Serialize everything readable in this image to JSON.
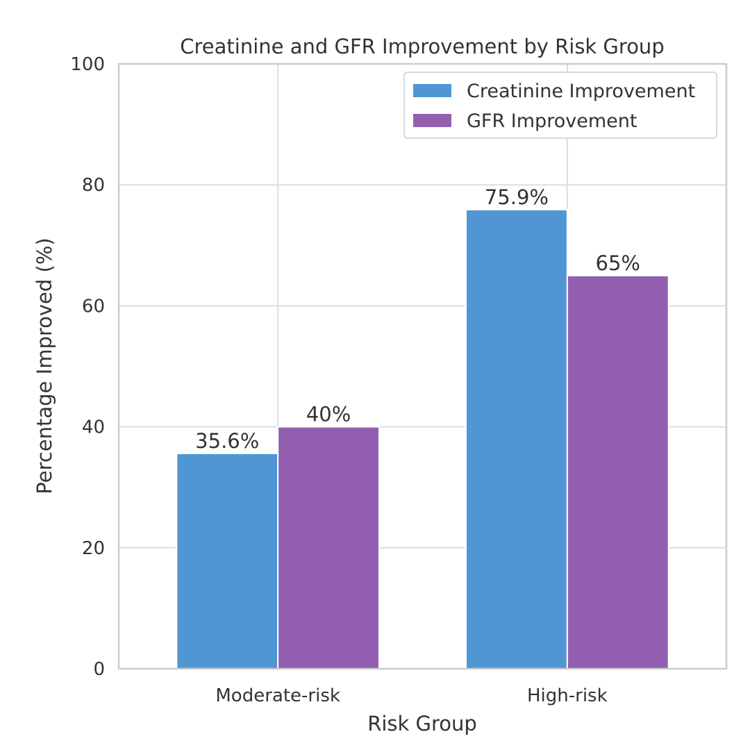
{
  "chart_data": {
    "type": "bar",
    "title": "Creatinine and GFR Improvement by Risk Group",
    "xlabel": "Risk Group",
    "ylabel": "Percentage Improved (%)",
    "categories": [
      "Moderate-risk",
      "High-risk"
    ],
    "series": [
      {
        "name": "Creatinine Improvement",
        "values": [
          35.6,
          75.9
        ],
        "labels": [
          "35.6%",
          "75.9%"
        ],
        "color": "#5196d4"
      },
      {
        "name": "GFR Improvement",
        "values": [
          40,
          65
        ],
        "labels": [
          "40%",
          "65%"
        ],
        "color": "#925fb0"
      }
    ],
    "ylim": [
      0,
      100
    ],
    "yticks": [
      0,
      20,
      40,
      60,
      80,
      100
    ],
    "grid": true,
    "legend_position": "top-right"
  }
}
